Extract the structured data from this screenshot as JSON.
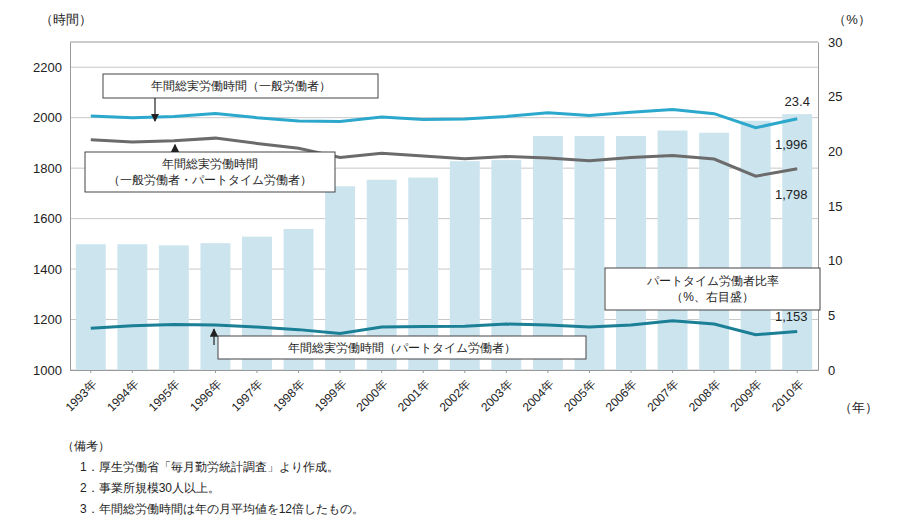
{
  "chart_data": {
    "type": "bar",
    "categories": [
      "1993年",
      "1994年",
      "1995年",
      "1996年",
      "1997年",
      "1998年",
      "1999年",
      "2000年",
      "2001年",
      "2002年",
      "2003年",
      "2004年",
      "2005年",
      "2006年",
      "2007年",
      "2008年",
      "2009年",
      "2010年"
    ],
    "y_label": "（時間）",
    "y2_label": "（%）",
    "x_label": "（年）",
    "ylim": [
      1000,
      2300
    ],
    "yticks": [
      1000,
      1200,
      1400,
      1600,
      1800,
      2000,
      2200
    ],
    "y2lim": [
      0,
      30
    ],
    "y2ticks": [
      0,
      5,
      10,
      15,
      20,
      25,
      30
    ],
    "grid": true,
    "series": [
      {
        "name": "パートタイム労働者比率\n（%、右目盛）",
        "type": "bar",
        "axis": "y2",
        "color": "#cce4ee",
        "data_labels": true,
        "values": [
          11.5,
          11.5,
          11.4,
          11.6,
          12.2,
          12.9,
          16.8,
          17.4,
          17.6,
          19.1,
          19.2,
          21.4,
          21.4,
          21.4,
          21.9,
          21.7,
          22.8,
          23.4
        ],
        "value_labels": [
          null,
          null,
          null,
          null,
          null,
          null,
          null,
          null,
          null,
          null,
          null,
          null,
          null,
          null,
          null,
          null,
          null,
          "23.4"
        ]
      },
      {
        "name": "年間総実労働時間（一般労働者）",
        "type": "line",
        "color": "#2ba8cc",
        "data_labels": true,
        "values": [
          2007,
          2000,
          2005,
          2017,
          2000,
          1987,
          1985,
          2003,
          1993,
          1995,
          2005,
          2020,
          2009,
          2022,
          2032,
          2016,
          1960,
          1996
        ],
        "value_labels": [
          null,
          null,
          null,
          null,
          null,
          null,
          null,
          null,
          null,
          null,
          null,
          null,
          null,
          null,
          null,
          null,
          null,
          "1,996"
        ]
      },
      {
        "name": "年間総実労働時間\n（一般労働者・パートタイム労働者）",
        "type": "line",
        "color": "#6b6b6b",
        "data_labels": true,
        "values": [
          1913,
          1904,
          1909,
          1919,
          1898,
          1879,
          1842,
          1859,
          1848,
          1837,
          1846,
          1840,
          1829,
          1842,
          1850,
          1836,
          1768,
          1798
        ],
        "value_labels": [
          null,
          null,
          null,
          null,
          null,
          null,
          null,
          null,
          null,
          null,
          null,
          null,
          null,
          null,
          null,
          null,
          null,
          "1,798"
        ]
      },
      {
        "name": "年間総実労働時間（パートタイム労働者）",
        "type": "line",
        "color": "#1b7f96",
        "data_labels": true,
        "values": [
          1165,
          1175,
          1180,
          1178,
          1170,
          1160,
          1145,
          1170,
          1172,
          1173,
          1182,
          1178,
          1170,
          1178,
          1195,
          1182,
          1140,
          1153
        ],
        "value_labels": [
          null,
          null,
          null,
          null,
          null,
          null,
          null,
          null,
          null,
          null,
          null,
          null,
          null,
          null,
          null,
          null,
          null,
          "1,153"
        ]
      }
    ],
    "notes": [
      "（備考）",
      "1．厚生労働省「毎月勤労統計調査」より作成。",
      "2．事業所規模30人以上。",
      "3．年間総労働時間は年の月平均値を12倍したもの。"
    ]
  }
}
